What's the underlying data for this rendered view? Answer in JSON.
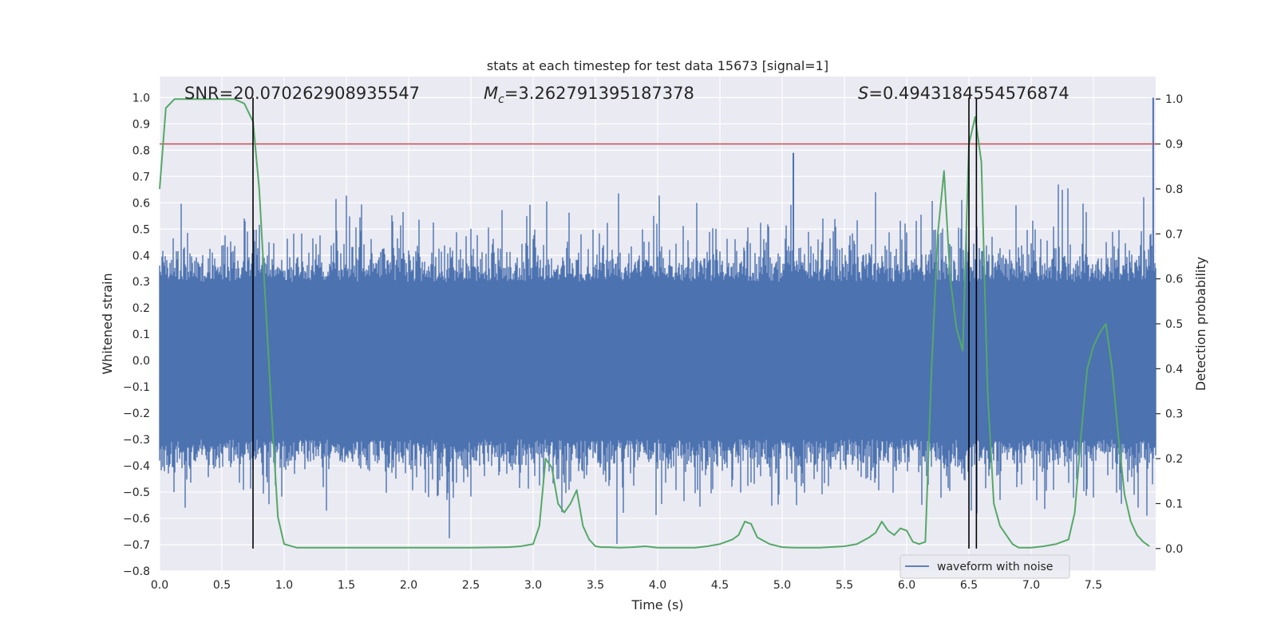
{
  "chart_data": {
    "type": "line",
    "title": "stats at each timestep for test data 15673 [signal=1]",
    "xlabel": "Time (s)",
    "ylabel": "Whitened strain",
    "y2label": "Detection probability",
    "xlim": [
      0,
      8
    ],
    "ylim": [
      -0.8,
      1.08
    ],
    "y2lim": [
      -0.05,
      1.05
    ],
    "x_ticks": [
      0.0,
      0.5,
      1.0,
      1.5,
      2.0,
      2.5,
      3.0,
      3.5,
      4.0,
      4.5,
      5.0,
      5.5,
      6.0,
      6.5,
      7.0,
      7.5
    ],
    "x_tick_labels": [
      "0.0",
      "0.5",
      "1.0",
      "1.5",
      "2.0",
      "2.5",
      "3.0",
      "3.5",
      "4.0",
      "4.5",
      "5.0",
      "5.5",
      "6.0",
      "6.5",
      "7.0",
      "7.5"
    ],
    "y_ticks": [
      -0.8,
      -0.7,
      -0.6,
      -0.5,
      -0.4,
      -0.3,
      -0.2,
      -0.1,
      0.0,
      0.1,
      0.2,
      0.3,
      0.4,
      0.5,
      0.6,
      0.7,
      0.8,
      0.9,
      1.0
    ],
    "y_tick_labels": [
      "−0.8",
      "−0.7",
      "−0.6",
      "−0.5",
      "−0.4",
      "−0.3",
      "−0.2",
      "−0.1",
      "0.0",
      "0.1",
      "0.2",
      "0.3",
      "0.4",
      "0.5",
      "0.6",
      "0.7",
      "0.8",
      "0.9",
      "1.0"
    ],
    "y2_ticks": [
      0.0,
      0.1,
      0.2,
      0.3,
      0.4,
      0.5,
      0.6,
      0.7,
      0.8,
      0.9,
      1.0
    ],
    "y2_tick_labels": [
      "0.0",
      "0.1",
      "0.2",
      "0.3",
      "0.4",
      "0.5",
      "0.6",
      "0.7",
      "0.8",
      "0.9",
      "1.0"
    ],
    "grid": true,
    "legend": {
      "position": "bottom-right",
      "entries": [
        "waveform with noise"
      ]
    },
    "annotations": {
      "snr": "SNR=20.070262908935547",
      "mc_symbol": "M",
      "mc_sub": "c",
      "mc_value": "=3.262791395187378",
      "s_symbol": "S",
      "s_value": "=0.4943184554576874"
    },
    "threshold": {
      "axis": "y2",
      "value": 0.9,
      "color": "#c44e52"
    },
    "vlines": [
      0.75,
      6.5,
      6.56
    ],
    "waveform": {
      "name": "waveform with noise",
      "axis": "y",
      "color": "#4c72b0",
      "x_start": 0.0,
      "x_end": 8.0,
      "core_half_width": 0.3,
      "typical_peak": 0.5,
      "max_peak": 1.0,
      "min_trough": -0.72
    },
    "detection_probability": {
      "axis": "y2",
      "color": "#55a868",
      "x": [
        0.0,
        0.05,
        0.12,
        0.2,
        0.3,
        0.4,
        0.5,
        0.6,
        0.68,
        0.75,
        0.8,
        0.85,
        0.9,
        0.95,
        1.0,
        1.1,
        1.5,
        2.0,
        2.5,
        2.8,
        2.9,
        3.0,
        3.05,
        3.1,
        3.15,
        3.2,
        3.25,
        3.3,
        3.35,
        3.4,
        3.45,
        3.5,
        3.55,
        3.6,
        3.7,
        3.8,
        3.9,
        4.0,
        4.1,
        4.3,
        4.4,
        4.5,
        4.6,
        4.65,
        4.7,
        4.75,
        4.8,
        4.9,
        5.0,
        5.1,
        5.3,
        5.5,
        5.6,
        5.7,
        5.75,
        5.8,
        5.85,
        5.9,
        5.95,
        6.0,
        6.05,
        6.1,
        6.15,
        6.2,
        6.25,
        6.3,
        6.35,
        6.4,
        6.45,
        6.5,
        6.55,
        6.6,
        6.65,
        6.7,
        6.75,
        6.8,
        6.85,
        6.9,
        7.0,
        7.1,
        7.2,
        7.3,
        7.35,
        7.4,
        7.45,
        7.5,
        7.55,
        7.6,
        7.65,
        7.7,
        7.75,
        7.8,
        7.85,
        7.9,
        7.95
      ],
      "y": [
        0.8,
        0.98,
        1.0,
        1.0,
        1.0,
        1.0,
        1.0,
        1.0,
        0.99,
        0.95,
        0.8,
        0.55,
        0.3,
        0.07,
        0.01,
        0.002,
        0.002,
        0.002,
        0.002,
        0.003,
        0.005,
        0.01,
        0.05,
        0.2,
        0.18,
        0.1,
        0.08,
        0.1,
        0.13,
        0.05,
        0.02,
        0.005,
        0.003,
        0.003,
        0.002,
        0.003,
        0.005,
        0.002,
        0.002,
        0.002,
        0.005,
        0.01,
        0.02,
        0.03,
        0.06,
        0.055,
        0.025,
        0.01,
        0.003,
        0.002,
        0.002,
        0.005,
        0.01,
        0.025,
        0.035,
        0.06,
        0.04,
        0.03,
        0.045,
        0.04,
        0.015,
        0.01,
        0.015,
        0.4,
        0.7,
        0.84,
        0.6,
        0.49,
        0.44,
        0.9,
        0.96,
        0.86,
        0.35,
        0.1,
        0.05,
        0.03,
        0.01,
        0.002,
        0.002,
        0.005,
        0.01,
        0.02,
        0.08,
        0.25,
        0.4,
        0.45,
        0.48,
        0.5,
        0.4,
        0.25,
        0.12,
        0.06,
        0.03,
        0.015,
        0.005
      ]
    }
  }
}
